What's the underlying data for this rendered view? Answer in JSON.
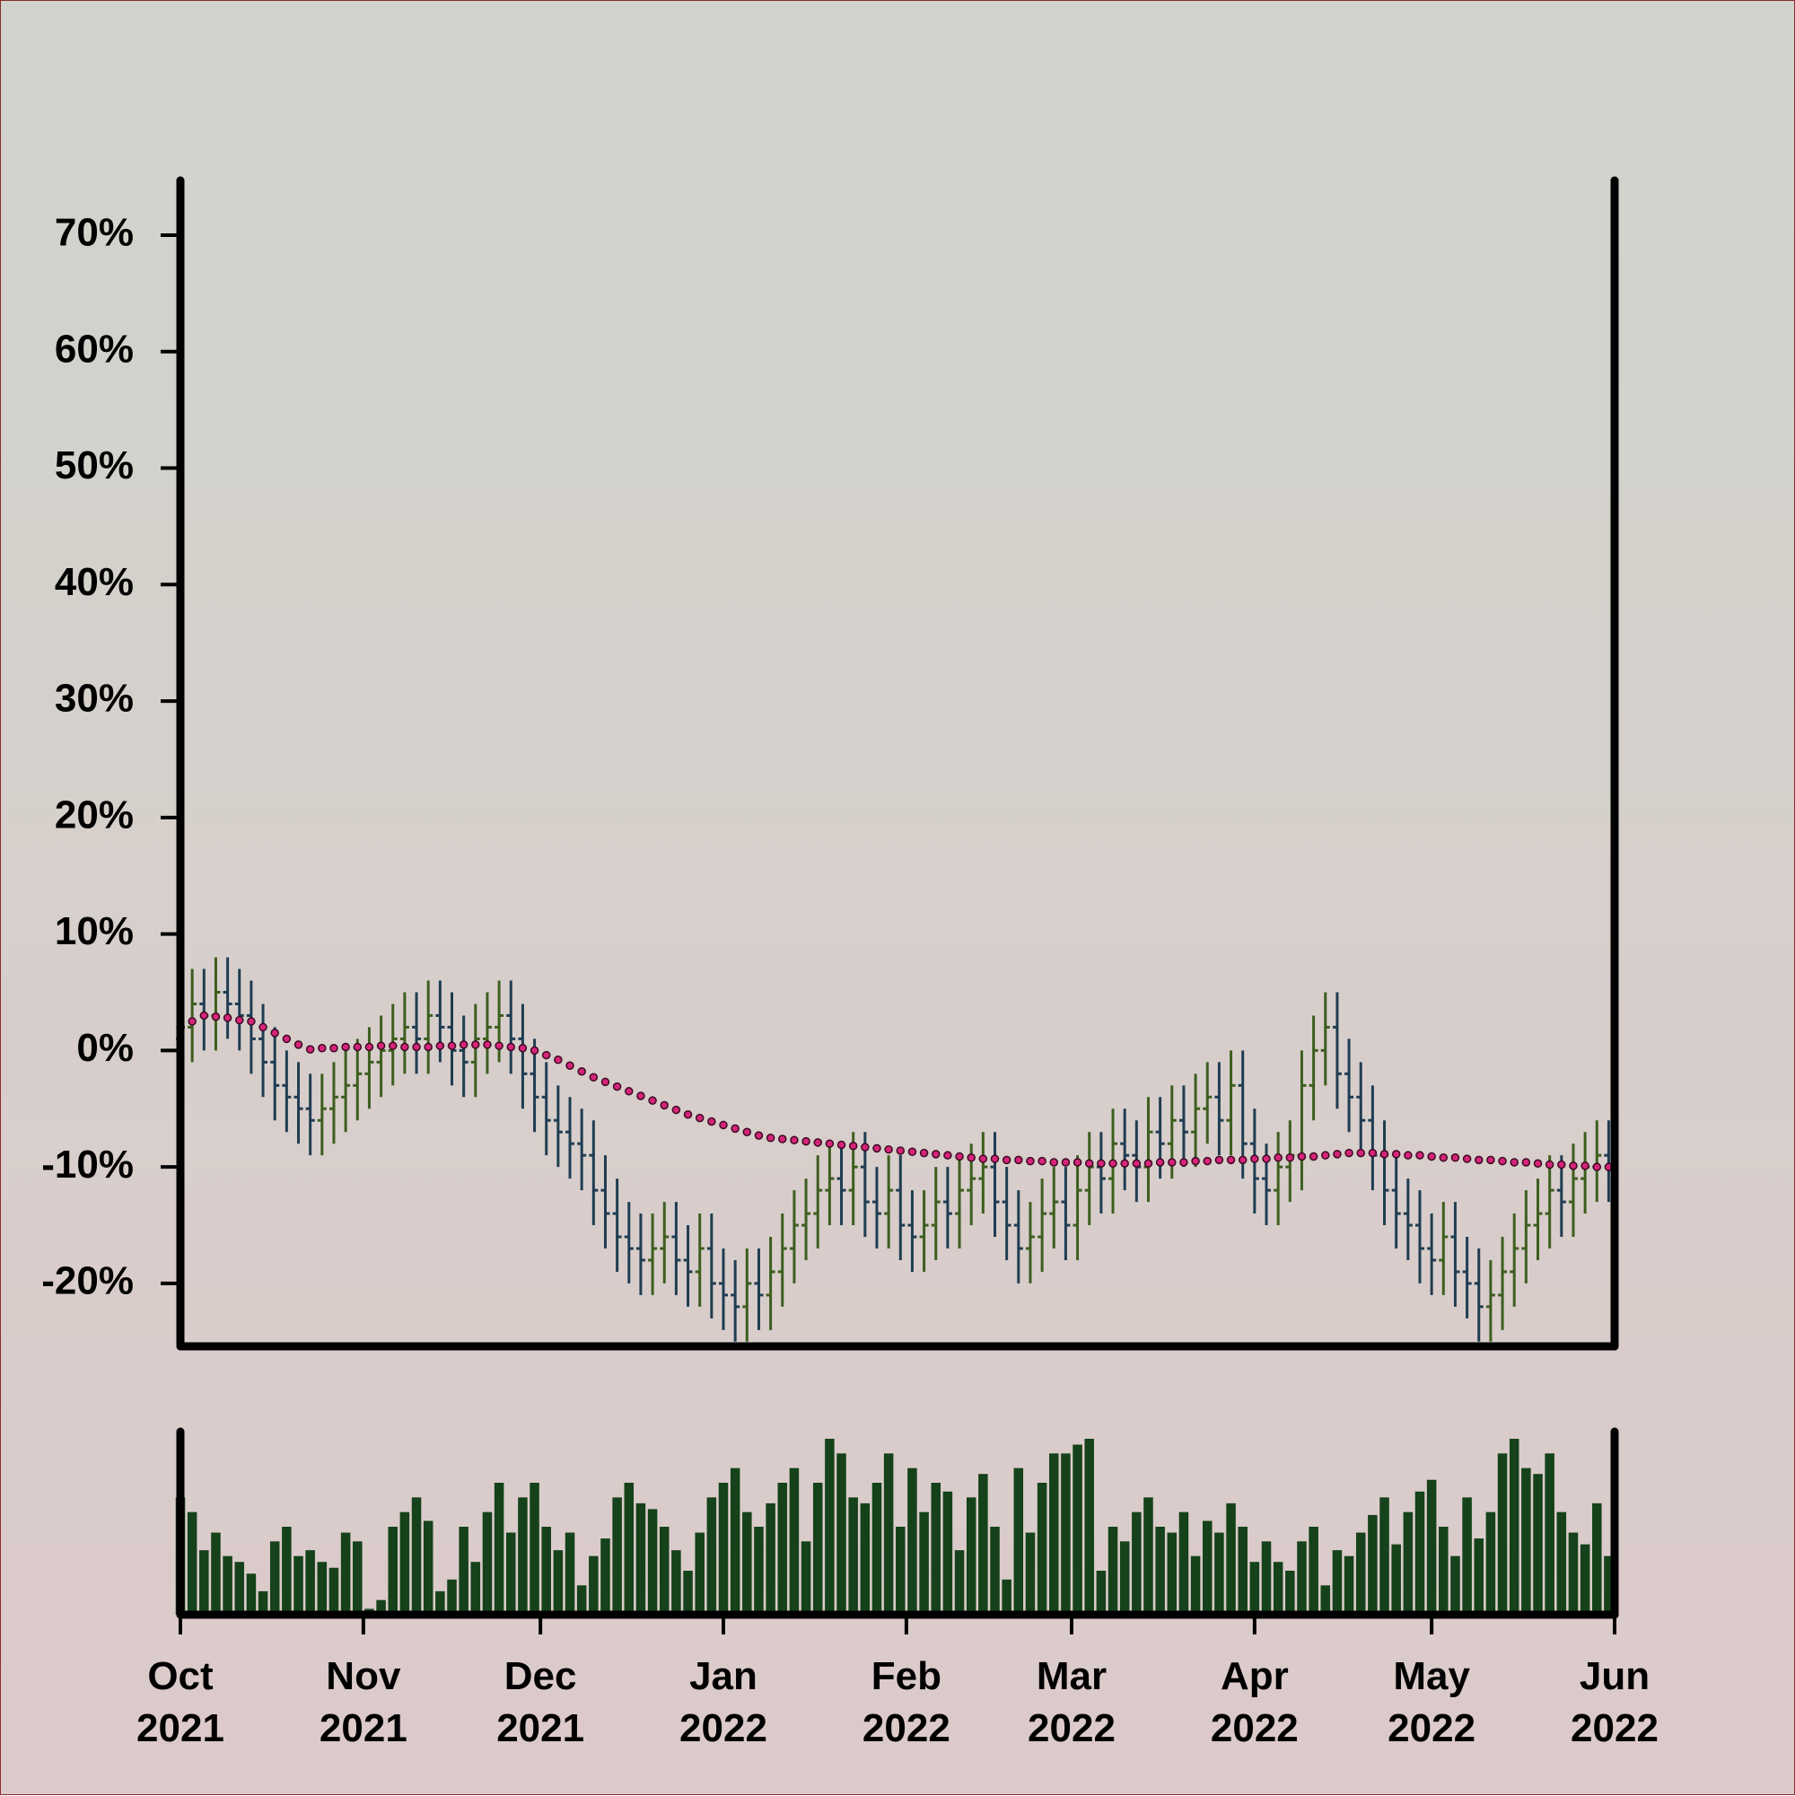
{
  "chart_data": {
    "type": "ohlc",
    "xlim": [
      0,
      243
    ],
    "xticks": [
      {
        "value": 0,
        "label": "Oct\n2021"
      },
      {
        "value": 31,
        "label": "Nov\n2021"
      },
      {
        "value": 61,
        "label": "Dec\n2021"
      },
      {
        "value": 92,
        "label": "Jan\n2022"
      },
      {
        "value": 123,
        "label": "Feb\n2022"
      },
      {
        "value": 151,
        "label": "Mar\n2022"
      },
      {
        "value": 182,
        "label": "Apr\n2022"
      },
      {
        "value": 212,
        "label": "May\n2022"
      },
      {
        "value": 243,
        "label": "Jun\n2022"
      }
    ],
    "ylim": [
      -25.4,
      74.7
    ],
    "yticks": [
      {
        "value": -20,
        "label": "-20%"
      },
      {
        "value": -10,
        "label": "-10%"
      },
      {
        "value": 0,
        "label": "0%"
      },
      {
        "value": 10,
        "label": "10%"
      },
      {
        "value": 20,
        "label": "20%"
      },
      {
        "value": 30,
        "label": "30%"
      },
      {
        "value": 40,
        "label": "40%"
      },
      {
        "value": 50,
        "label": "50%"
      },
      {
        "value": 60,
        "label": "60%"
      },
      {
        "value": 70,
        "label": "70%"
      }
    ],
    "up_color": "#3d5e1f",
    "down_color": "#1f3d52",
    "x": [
      0,
      2,
      4,
      6,
      8,
      10,
      12,
      14,
      16,
      18,
      20,
      22,
      24,
      26,
      28,
      30,
      32,
      34,
      36,
      38,
      40,
      42,
      44,
      46,
      48,
      50,
      52,
      54,
      56,
      58,
      60,
      62,
      64,
      66,
      68,
      70,
      72,
      74,
      76,
      78,
      80,
      82,
      84,
      86,
      88,
      90,
      92,
      94,
      96,
      98,
      100,
      102,
      104,
      106,
      108,
      110,
      112,
      114,
      116,
      118,
      120,
      122,
      124,
      126,
      128,
      130,
      132,
      134,
      136,
      138,
      140,
      142,
      144,
      146,
      148,
      150,
      152,
      154,
      156,
      158,
      160,
      162,
      164,
      166,
      168,
      170,
      172,
      174,
      176,
      178,
      180,
      182,
      184,
      186,
      188,
      190,
      192,
      194,
      196,
      198,
      200,
      202,
      204,
      206,
      208,
      210,
      212,
      214,
      216,
      218,
      220,
      222,
      224,
      226,
      228,
      230,
      232,
      234,
      236,
      238,
      240,
      242
    ],
    "open": [
      1,
      2,
      4,
      3,
      5,
      4,
      3,
      1,
      -1,
      -3,
      -4,
      -5,
      -6,
      -5,
      -4,
      -3,
      -2,
      -1,
      0,
      1,
      2,
      1,
      3,
      2,
      0,
      -1,
      1,
      2,
      3,
      1,
      -2,
      -4,
      -6,
      -7,
      -8,
      -9,
      -12,
      -14,
      -16,
      -17,
      -18,
      -17,
      -16,
      -18,
      -19,
      -17,
      -20,
      -21,
      -22,
      -20,
      -21,
      -19,
      -17,
      -15,
      -14,
      -12,
      -11,
      -12,
      -10,
      -13,
      -14,
      -12,
      -15,
      -16,
      -15,
      -13,
      -14,
      -12,
      -11,
      -10,
      -13,
      -15,
      -17,
      -16,
      -14,
      -13,
      -15,
      -12,
      -10,
      -11,
      -8,
      -9,
      -10,
      -7,
      -8,
      -6,
      -7,
      -5,
      -4,
      -6,
      -3,
      -8,
      -11,
      -12,
      -10,
      -9,
      -3,
      0,
      2,
      -2,
      -4,
      -6,
      -9,
      -12,
      -14,
      -15,
      -17,
      -18,
      -16,
      -19,
      -20,
      -22,
      -21,
      -19,
      -17,
      -15,
      -14,
      -12,
      -13,
      -11,
      -10,
      -9
    ],
    "high": [
      5,
      7,
      7,
      8,
      8,
      7,
      6,
      4,
      2,
      0,
      -1,
      -2,
      -2,
      -1,
      0,
      1,
      2,
      3,
      4,
      5,
      5,
      6,
      6,
      5,
      3,
      4,
      5,
      6,
      6,
      4,
      1,
      -1,
      -3,
      -4,
      -5,
      -6,
      -9,
      -11,
      -13,
      -14,
      -14,
      -13,
      -13,
      -15,
      -14,
      -14,
      -17,
      -18,
      -17,
      -17,
      -16,
      -14,
      -12,
      -11,
      -9,
      -8,
      -8,
      -7,
      -7,
      -10,
      -9,
      -9,
      -12,
      -12,
      -10,
      -10,
      -9,
      -8,
      -7,
      -7,
      -10,
      -12,
      -13,
      -11,
      -10,
      -10,
      -9,
      -7,
      -7,
      -5,
      -5,
      -6,
      -4,
      -4,
      -3,
      -3,
      -2,
      -1,
      -1,
      0,
      0,
      -5,
      -8,
      -7,
      -6,
      0,
      3,
      5,
      5,
      1,
      -1,
      -3,
      -6,
      -9,
      -11,
      -12,
      -14,
      -13,
      -13,
      -16,
      -17,
      -18,
      -16,
      -14,
      -12,
      -11,
      -9,
      -9,
      -8,
      -7,
      -6,
      -6
    ],
    "low": [
      -2,
      -1,
      0,
      0,
      1,
      0,
      -2,
      -4,
      -6,
      -7,
      -8,
      -9,
      -9,
      -8,
      -7,
      -6,
      -5,
      -4,
      -3,
      -2,
      -2,
      -2,
      -1,
      -3,
      -4,
      -4,
      -2,
      -1,
      -2,
      -5,
      -7,
      -9,
      -10,
      -11,
      -12,
      -15,
      -17,
      -19,
      -20,
      -21,
      -21,
      -20,
      -21,
      -22,
      -22,
      -23,
      -24,
      -25,
      -25,
      -24,
      -24,
      -22,
      -20,
      -18,
      -17,
      -15,
      -15,
      -15,
      -16,
      -17,
      -17,
      -18,
      -19,
      -19,
      -18,
      -17,
      -17,
      -15,
      -14,
      -16,
      -18,
      -20,
      -20,
      -19,
      -17,
      -18,
      -18,
      -15,
      -14,
      -14,
      -12,
      -13,
      -13,
      -11,
      -11,
      -10,
      -10,
      -8,
      -9,
      -9,
      -11,
      -14,
      -15,
      -15,
      -13,
      -12,
      -6,
      -3,
      -5,
      -7,
      -9,
      -12,
      -15,
      -17,
      -18,
      -20,
      -21,
      -21,
      -22,
      -23,
      -25,
      -25,
      -24,
      -22,
      -20,
      -18,
      -17,
      -16,
      -16,
      -14,
      -13,
      -13
    ],
    "close": [
      2,
      4,
      3,
      5,
      4,
      3,
      1,
      -1,
      -3,
      -4,
      -5,
      -6,
      -5,
      -4,
      -3,
      -2,
      -1,
      0,
      1,
      2,
      1,
      3,
      2,
      0,
      -1,
      1,
      2,
      3,
      1,
      -2,
      -4,
      -6,
      -7,
      -8,
      -9,
      -12,
      -14,
      -16,
      -17,
      -18,
      -17,
      -16,
      -18,
      -19,
      -17,
      -20,
      -21,
      -22,
      -20,
      -21,
      -19,
      -17,
      -15,
      -14,
      -12,
      -11,
      -12,
      -10,
      -13,
      -14,
      -12,
      -15,
      -16,
      -15,
      -13,
      -14,
      -12,
      -11,
      -10,
      -13,
      -15,
      -17,
      -16,
      -14,
      -13,
      -15,
      -12,
      -10,
      -11,
      -8,
      -9,
      -10,
      -7,
      -8,
      -6,
      -7,
      -5,
      -4,
      -6,
      -3,
      -8,
      -11,
      -12,
      -10,
      -9,
      -3,
      0,
      2,
      -2,
      -4,
      -6,
      -9,
      -12,
      -14,
      -15,
      -17,
      -18,
      -16,
      -19,
      -20,
      -22,
      -21,
      -19,
      -17,
      -15,
      -14,
      -12,
      -13,
      -11,
      -10,
      -9,
      -10
    ],
    "moving_average": {
      "color": "#d6247a",
      "values": [
        2,
        2.5,
        3,
        2.9,
        2.8,
        2.6,
        2.5,
        2,
        1.5,
        1,
        0.5,
        0.1,
        0.2,
        0.2,
        0.3,
        0.3,
        0.3,
        0.4,
        0.4,
        0.3,
        0.3,
        0.3,
        0.4,
        0.4,
        0.5,
        0.5,
        0.5,
        0.4,
        0.3,
        0.2,
        0,
        -0.4,
        -0.8,
        -1.3,
        -1.8,
        -2.3,
        -2.7,
        -3.1,
        -3.5,
        -3.9,
        -4.3,
        -4.7,
        -5.1,
        -5.5,
        -5.8,
        -6.1,
        -6.4,
        -6.7,
        -7,
        -7.3,
        -7.5,
        -7.6,
        -7.7,
        -7.8,
        -7.9,
        -8,
        -8.1,
        -8.2,
        -8.3,
        -8.4,
        -8.5,
        -8.6,
        -8.7,
        -8.8,
        -8.9,
        -9,
        -9.1,
        -9.2,
        -9.3,
        -9.3,
        -9.4,
        -9.4,
        -9.5,
        -9.5,
        -9.6,
        -9.6,
        -9.6,
        -9.7,
        -9.7,
        -9.7,
        -9.7,
        -9.7,
        -9.7,
        -9.6,
        -9.6,
        -9.6,
        -9.5,
        -9.5,
        -9.4,
        -9.4,
        -9.4,
        -9.3,
        -9.3,
        -9.2,
        -9.2,
        -9.1,
        -9.1,
        -9,
        -8.9,
        -8.8,
        -8.8,
        -8.8,
        -8.9,
        -8.9,
        -9,
        -9,
        -9.1,
        -9.2,
        -9.2,
        -9.3,
        -9.4,
        -9.4,
        -9.5,
        -9.6,
        -9.6,
        -9.7,
        -9.8,
        -9.8,
        -9.9,
        -9.9,
        -10,
        -10
      ]
    },
    "volume": {
      "color": "#15421a",
      "values": [
        40,
        35,
        22,
        28,
        20,
        18,
        14,
        8,
        25,
        30,
        20,
        22,
        18,
        16,
        28,
        25,
        2,
        5,
        30,
        35,
        40,
        32,
        8,
        12,
        30,
        18,
        35,
        45,
        28,
        40,
        45,
        30,
        22,
        28,
        10,
        20,
        26,
        40,
        45,
        38,
        36,
        30,
        22,
        15,
        28,
        40,
        45,
        50,
        35,
        30,
        38,
        45,
        50,
        25,
        45,
        60,
        55,
        40,
        38,
        45,
        55,
        30,
        50,
        35,
        45,
        42,
        22,
        40,
        48,
        30,
        12,
        50,
        28,
        45,
        55,
        55,
        58,
        60,
        15,
        30,
        25,
        35,
        40,
        30,
        28,
        35,
        20,
        32,
        28,
        38,
        30,
        18,
        25,
        18,
        15,
        25,
        30,
        10,
        22,
        20,
        28,
        34,
        40,
        24,
        35,
        42,
        46,
        30,
        20,
        40,
        26,
        35,
        55,
        60,
        50,
        48,
        55,
        35,
        28,
        24,
        38,
        20
      ]
    }
  }
}
